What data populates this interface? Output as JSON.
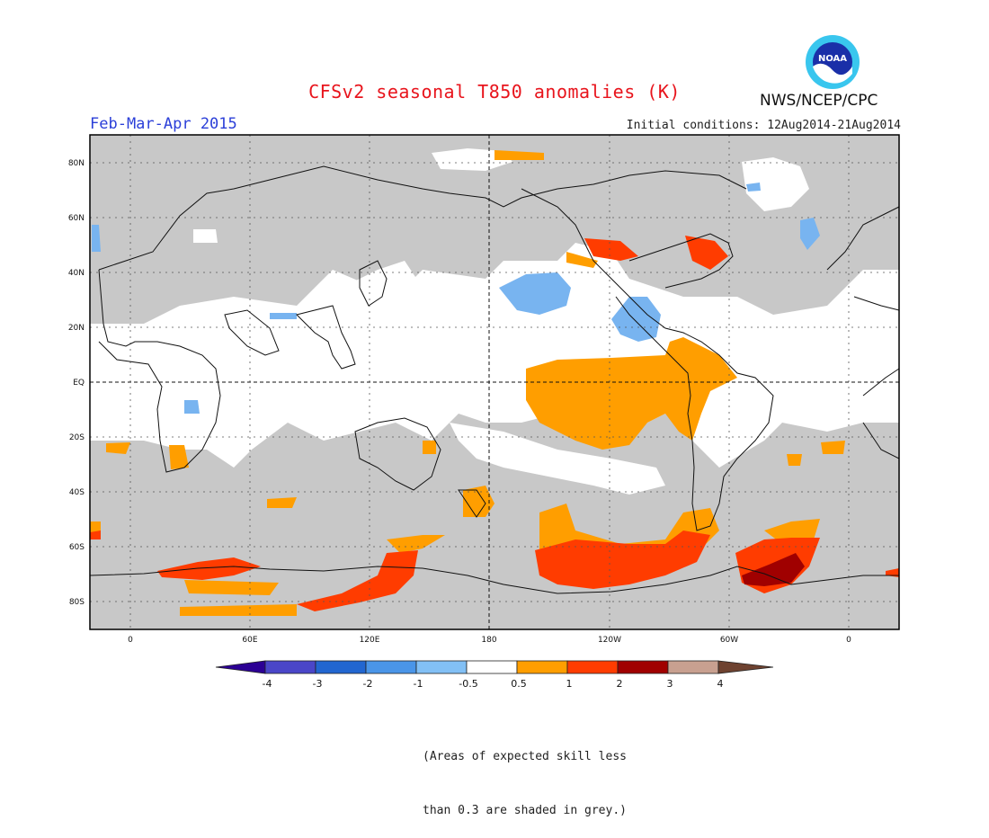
{
  "title": "CFSv2 seasonal T850 anomalies (K)",
  "period": "Feb-Mar-Apr 2015",
  "initial_conditions": "Initial conditions: 12Aug2014-21Aug2014",
  "agency": "NWS/NCEP/CPC",
  "logo": {
    "text": "NOAA",
    "icon": "noaa-logo-icon"
  },
  "map": {
    "projection": "equirectangular",
    "center_longitude": 180,
    "lat_labels": [
      "80N",
      "60N",
      "40N",
      "20N",
      "EQ",
      "20S",
      "40S",
      "60S",
      "80S"
    ],
    "lon_labels": [
      "0",
      "60E",
      "120E",
      "180",
      "120W",
      "60W",
      "0"
    ],
    "grid": "dotted",
    "dateline": "dashed",
    "equator": "dashed",
    "colors": {
      "ocean_unskilled": "#c8c8c8",
      "neutral": "#ffffff",
      "light_blue": "#78b4f0",
      "orange": "#ff9e00",
      "red_orange": "#ff3c00",
      "dark_red": "#a00000"
    }
  },
  "colorbar": {
    "tick_labels": [
      "-4",
      "-3",
      "-2",
      "-1",
      "-0.5",
      "0.5",
      "1",
      "2",
      "3",
      "4"
    ],
    "colors": [
      "#2c0094",
      "#4a46c8",
      "#2266d0",
      "#4a95e8",
      "#82c0f5",
      "#ffffff",
      "#ff9e00",
      "#ff3c00",
      "#a00000",
      "#c8a090",
      "#6e4230"
    ]
  },
  "footnote": {
    "line1": "(Areas of expected skill less",
    "line2": "than 0.3 are shaded in grey.)"
  }
}
